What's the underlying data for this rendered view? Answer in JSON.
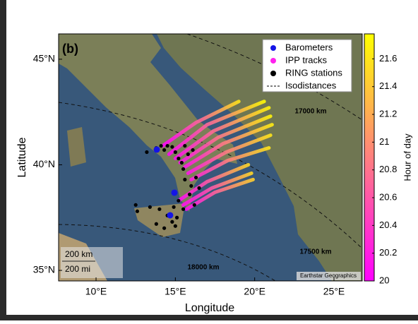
{
  "chart_data": {
    "type": "map",
    "panel_label": "(b)",
    "x_label": "Longitude",
    "y_label": "Latitude",
    "xlim": [
      7.64,
      26.78
    ],
    "ylim": [
      34.5,
      46.2
    ],
    "xticks": [
      {
        "value": 10,
        "label": "10°E"
      },
      {
        "value": 15,
        "label": "15°E"
      },
      {
        "value": 20,
        "label": "20°E"
      },
      {
        "value": 25,
        "label": "25°E"
      }
    ],
    "yticks": [
      {
        "value": 35,
        "label": "35°N"
      },
      {
        "value": 40,
        "label": "40°N"
      },
      {
        "value": 45,
        "label": "45°N"
      }
    ],
    "series": [
      {
        "name": "Barometers",
        "color": "#1414e6",
        "x": [
          13.83,
          14.94,
          14.67
        ],
        "y": [
          40.72,
          38.68,
          37.61
        ]
      },
      {
        "name": "IPP tracks",
        "color": "#ff22ee",
        "tracks": [
          {
            "x": [
              14.6,
              17.0,
              20.6
            ],
            "y": [
              40.5,
              41.9,
              43.0
            ],
            "hours": [
              20.05,
              20.8,
              21.75
            ]
          },
          {
            "x": [
              15.0,
              17.4,
              20.9
            ],
            "y": [
              40.3,
              41.6,
              42.7
            ],
            "hours": [
              20.1,
              20.85,
              21.7
            ]
          },
          {
            "x": [
              15.3,
              17.7,
              21.0
            ],
            "y": [
              40.1,
              41.3,
              42.3
            ],
            "hours": [
              20.1,
              20.9,
              21.7
            ]
          },
          {
            "x": [
              15.6,
              18.0,
              21.1
            ],
            "y": [
              39.9,
              41.0,
              41.9
            ],
            "hours": [
              20.15,
              20.9,
              21.65
            ]
          },
          {
            "x": [
              15.8,
              18.2,
              21.0
            ],
            "y": [
              39.6,
              40.6,
              41.4
            ],
            "hours": [
              20.15,
              20.9,
              21.6
            ]
          },
          {
            "x": [
              16.0,
              18.3,
              20.9
            ],
            "y": [
              39.3,
              40.2,
              40.8
            ],
            "hours": [
              20.2,
              20.9,
              21.6
            ]
          },
          {
            "x": [
              15.2,
              17.0,
              19.6
            ],
            "y": [
              38.3,
              39.2,
              40.0
            ],
            "hours": [
              20.05,
              20.7,
              21.5
            ]
          },
          {
            "x": [
              15.5,
              17.3,
              19.8
            ],
            "y": [
              38.1,
              38.9,
              39.6
            ],
            "hours": [
              20.1,
              20.7,
              21.5
            ]
          },
          {
            "x": [
              15.7,
              17.5,
              19.9
            ],
            "y": [
              37.9,
              38.7,
              39.3
            ],
            "hours": [
              20.1,
              20.75,
              21.45
            ]
          },
          {
            "x": [
              14.2,
              16.3,
              19.0
            ],
            "y": [
              40.9,
              42.0,
              43.0
            ],
            "hours": [
              20.0,
              20.7,
              21.6
            ]
          }
        ]
      },
      {
        "name": "RING stations",
        "color": "#000000",
        "x": [
          13.2,
          13.8,
          14.1,
          14.3,
          14.5,
          14.8,
          15.0,
          15.2,
          15.4,
          15.6,
          15.8,
          16.1,
          15.5,
          15.6,
          16.0,
          16.3,
          15.9,
          15.2,
          14.9,
          15.5,
          15.1,
          14.8,
          14.5,
          14.0,
          13.4,
          12.6,
          12.5,
          13.8,
          15.0,
          14.3,
          16.5,
          16.2
        ],
        "y": [
          40.6,
          40.8,
          40.9,
          40.7,
          40.9,
          40.85,
          40.6,
          40.3,
          40.1,
          40.9,
          40.5,
          40.7,
          39.8,
          39.3,
          39.0,
          39.4,
          38.6,
          38.3,
          38.0,
          37.9,
          37.5,
          37.3,
          37.6,
          37.9,
          38.0,
          37.8,
          38.1,
          37.2,
          37.1,
          37.0,
          38.9,
          38.1
        ]
      },
      {
        "name": "Isodistances",
        "color": "#000000",
        "labels": [
          "17000 km",
          "17500 km",
          "18000 km"
        ]
      }
    ],
    "colorbar": {
      "label": "Hour of day",
      "colormap": "spring",
      "lim": [
        20,
        21.78
      ],
      "ticks": [
        20,
        20.2,
        20.4,
        20.6,
        20.8,
        21,
        21.2,
        21.4,
        21.6
      ]
    },
    "scale_bar": [
      "200 km",
      "200 mi"
    ],
    "attribution": "Earthstar Geographics"
  }
}
